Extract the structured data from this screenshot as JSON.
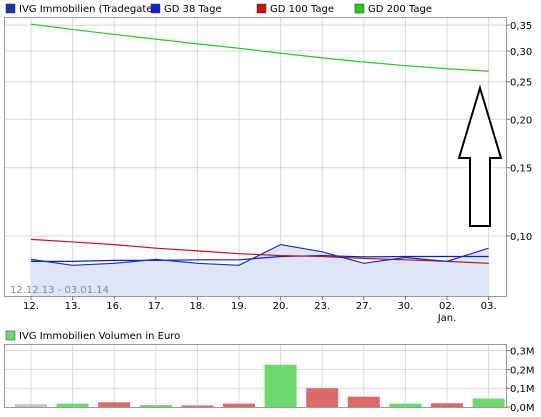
{
  "chart_data": [
    {
      "type": "line",
      "legend": [
        {
          "name": "IVG Immobilien (Tradegate)",
          "color": "#1c33a8"
        },
        {
          "name": "GD 38 Tage",
          "color": "#0c1fd0"
        },
        {
          "name": "GD 100 Tage",
          "color": "#cc1010"
        },
        {
          "name": "GD 200 Tage",
          "color": "#22cc22"
        }
      ],
      "legend_position": "top",
      "period_label": "12.12.13 - 03.01.14",
      "x_ticks": [
        "12.",
        "13.",
        "16.",
        "17.",
        "18.",
        "19.",
        "20.",
        "23.",
        "27.",
        "30.",
        "02.",
        "03."
      ],
      "x_sublabels": [
        {
          "index": 10,
          "text": "Jan."
        }
      ],
      "y_ticks": [
        "0,35",
        "0,30",
        "0,25",
        "0,20",
        "0,15",
        "0,10"
      ],
      "y_tick_values": [
        0.35,
        0.3,
        0.25,
        0.2,
        0.15,
        0.1
      ],
      "y_scale": "log",
      "ylim": [
        0.07,
        0.365
      ],
      "grid": true,
      "series": [
        {
          "name": "IVG Immobilien (Tradegate)",
          "color": "#1c33a8",
          "fill": "#dce6f8",
          "values": [
            0.087,
            0.084,
            0.085,
            0.087,
            0.085,
            0.084,
            0.095,
            0.091,
            0.085,
            0.088,
            0.086,
            0.093
          ]
        },
        {
          "name": "GD 38 Tage",
          "color": "#0c1fd0",
          "values": [
            0.086,
            0.086,
            0.0865,
            0.0865,
            0.0868,
            0.0868,
            0.0885,
            0.089,
            0.0883,
            0.0885,
            0.0885,
            0.0885
          ]
        },
        {
          "name": "GD 100 Tage",
          "color": "#cc1010",
          "values": [
            0.098,
            0.0965,
            0.095,
            0.093,
            0.0915,
            0.09,
            0.089,
            0.0885,
            0.0875,
            0.0868,
            0.086,
            0.085
          ]
        },
        {
          "name": "GD 200 Tage",
          "color": "#22cc22",
          "values": [
            0.352,
            0.341,
            0.331,
            0.322,
            0.313,
            0.305,
            0.296,
            0.288,
            0.281,
            0.275,
            0.27,
            0.266
          ]
        }
      ]
    },
    {
      "type": "bar",
      "legend": [
        {
          "name": "IVG Immobilien Volumen in Euro",
          "color": "#6dd86d"
        }
      ],
      "y_ticks": [
        "0,3M",
        "0,2M",
        "0,1M",
        "0,0M"
      ],
      "y_tick_values": [
        300000,
        200000,
        100000,
        0
      ],
      "ylim": [
        0,
        330000
      ],
      "grid": true,
      "values": [
        15000,
        18000,
        25000,
        10000,
        8000,
        18000,
        225000,
        100000,
        55000,
        18000,
        20000,
        45000
      ],
      "bar_colors": [
        "#c4c4c4",
        "#6dd86d",
        "#dd6a6a",
        "#6dd86d",
        "#dd6a6a",
        "#dd6a6a",
        "#6dd86d",
        "#dd6a6a",
        "#dd6a6a",
        "#6dd86d",
        "#dd6a6a",
        "#6dd86d"
      ]
    }
  ]
}
